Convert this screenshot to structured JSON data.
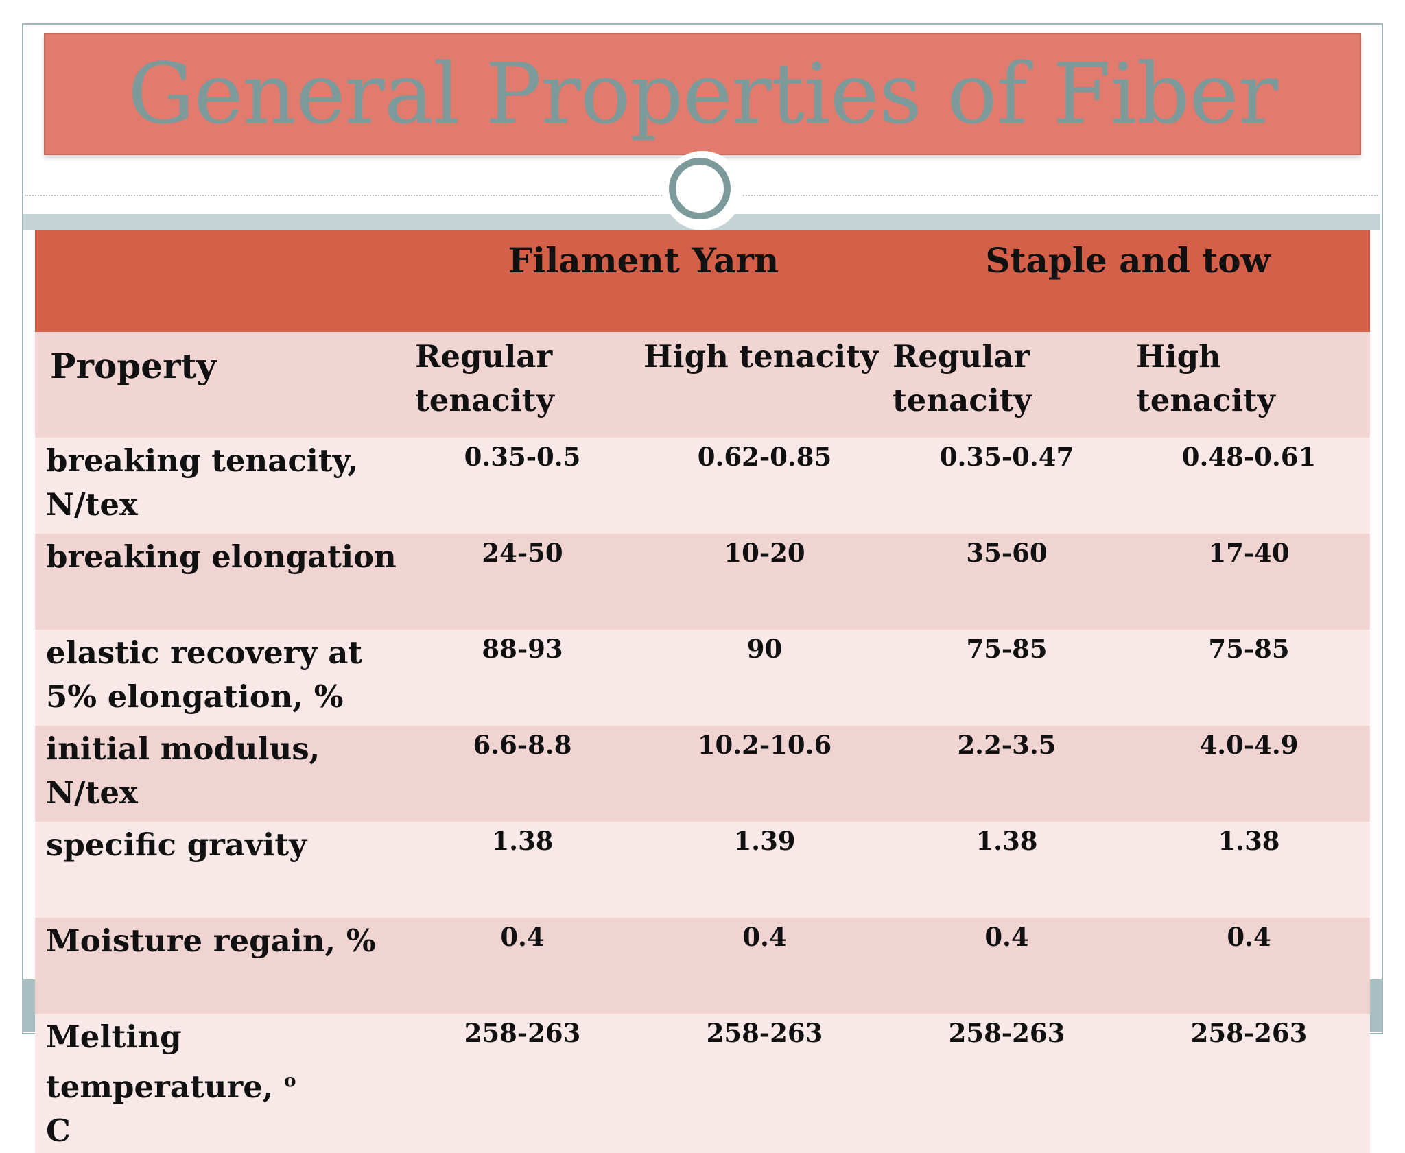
{
  "slide": {
    "title": "General Properties of Fiber"
  },
  "table": {
    "group_headers": [
      "Filament Yarn",
      "Staple and tow"
    ],
    "property_header": "Property",
    "sub_headers": [
      "Regular tenacity",
      "High tenacity",
      "Regular tenacity",
      "High tenacity"
    ],
    "rows": [
      {
        "label": "breaking tenacity, N/tex",
        "values": [
          "0.35-0.5",
          "0.62-0.85",
          "0.35-0.47",
          "0.48-0.61"
        ]
      },
      {
        "label": "breaking elongation",
        "values": [
          "24-50",
          "10-20",
          "35-60",
          "17-40"
        ]
      },
      {
        "label": "elastic recovery at 5% elongation, %",
        "values": [
          "88-93",
          "90",
          "75-85",
          "75-85"
        ]
      },
      {
        "label": "initial modulus, N/tex",
        "values": [
          "6.6-8.8",
          "10.2-10.6",
          "2.2-3.5",
          "4.0-4.9"
        ]
      },
      {
        "label": "specific gravity",
        "values": [
          "1.38",
          "1.39",
          "1.38",
          "1.38"
        ]
      },
      {
        "label": "Moisture regain, %",
        "values": [
          "0.4",
          "0.4",
          "0.4",
          "0.4"
        ]
      },
      {
        "label": "Melting temperature, ",
        "label_sup": "o",
        "label_tail": "C",
        "values": [
          "258-263",
          "258-263",
          "258-263",
          "258-263"
        ]
      }
    ]
  },
  "colors": {
    "title_bar": "#e07b6e",
    "title_text": "#7d9a9a",
    "header_row": "#d4604a",
    "row_light": "#f8e8e8",
    "row_dark": "#f0d4d2",
    "accent_teal": "#7d9a9a"
  }
}
